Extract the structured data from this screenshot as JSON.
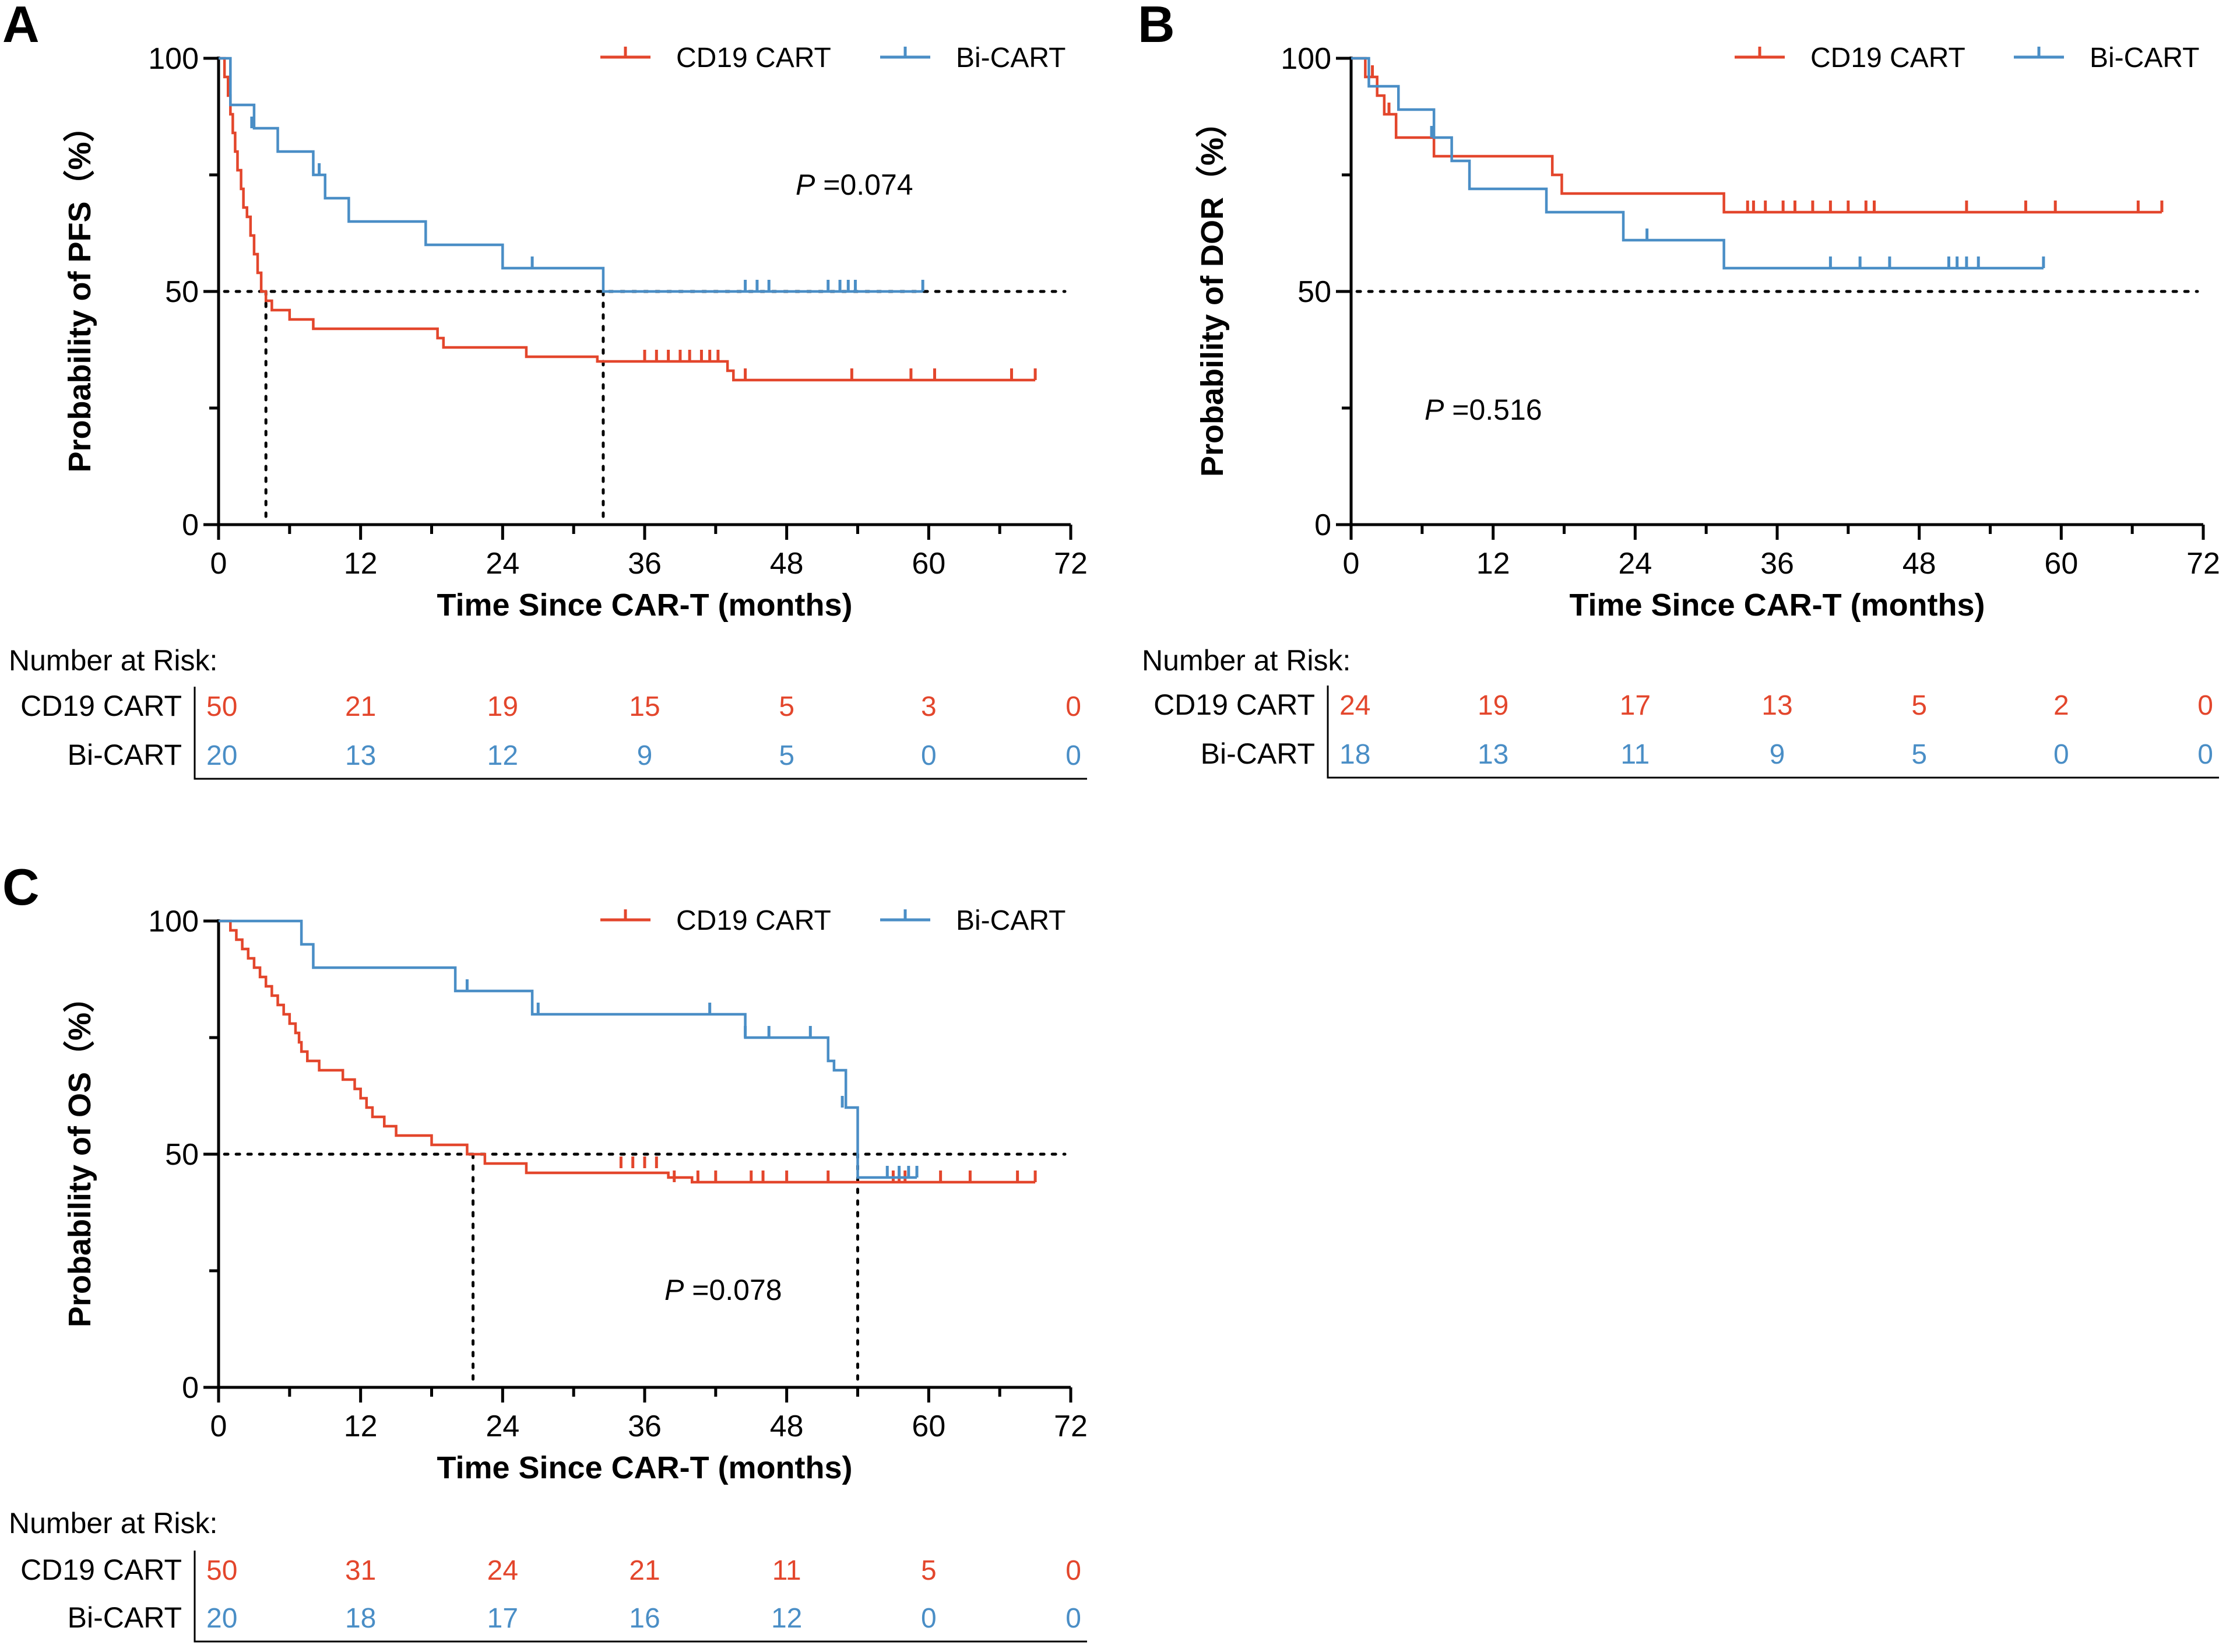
{
  "colors": {
    "cd19": "#e3462c",
    "bi": "#4a8ec6",
    "axis": "#000000"
  },
  "chart_data": [
    {
      "panel": "A",
      "type": "line",
      "subtype": "kaplan-meier",
      "ylabel": "Probability of PFS（%）",
      "xlabel": "Time Since CAR-T (months)",
      "xlim": [
        0,
        72
      ],
      "ylim": [
        0,
        100
      ],
      "xticks": [
        0,
        12,
        24,
        36,
        48,
        60,
        72
      ],
      "yticks": [
        0,
        50,
        100
      ],
      "reference_y": 50,
      "median_lines": [
        4,
        32.5
      ],
      "p_label": "P",
      "p_value": " =0.074",
      "series": [
        {
          "name": "CD19 CART",
          "color_key": "cd19",
          "steps": [
            [
              0,
              100
            ],
            [
              0.5,
              96
            ],
            [
              0.8,
              92
            ],
            [
              1,
              88
            ],
            [
              1.2,
              84
            ],
            [
              1.4,
              80
            ],
            [
              1.6,
              76
            ],
            [
              1.9,
              72
            ],
            [
              2.1,
              68
            ],
            [
              2.4,
              66
            ],
            [
              2.7,
              62
            ],
            [
              3,
              58
            ],
            [
              3.3,
              54
            ],
            [
              3.6,
              50
            ],
            [
              4,
              48
            ],
            [
              4.5,
              46
            ],
            [
              6,
              44
            ],
            [
              8,
              42
            ],
            [
              18.5,
              40
            ],
            [
              19,
              38
            ],
            [
              26,
              36
            ],
            [
              32,
              35
            ],
            [
              43,
              33
            ],
            [
              43.5,
              31
            ]
          ],
          "end_x": 69,
          "censored": [
            [
              36,
              35
            ],
            [
              37,
              35
            ],
            [
              38,
              35
            ],
            [
              39,
              35
            ],
            [
              39.8,
              35
            ],
            [
              40.8,
              35
            ],
            [
              41.5,
              35
            ],
            [
              42.2,
              35
            ],
            [
              44.5,
              31
            ],
            [
              53.5,
              31
            ],
            [
              58.5,
              31
            ],
            [
              60.5,
              31
            ],
            [
              67,
              31
            ],
            [
              69,
              31
            ]
          ]
        },
        {
          "name": "Bi-CART",
          "color_key": "bi",
          "steps": [
            [
              0,
              100
            ],
            [
              1,
              90
            ],
            [
              3,
              85
            ],
            [
              5,
              80
            ],
            [
              8,
              75
            ],
            [
              9,
              70
            ],
            [
              11,
              65
            ],
            [
              17.5,
              60
            ],
            [
              24,
              55
            ],
            [
              32.5,
              50
            ]
          ],
          "end_x": 59.5,
          "censored": [
            [
              2.8,
              85
            ],
            [
              8.5,
              75
            ],
            [
              26.5,
              55
            ],
            [
              44.5,
              50
            ],
            [
              45.5,
              50
            ],
            [
              46.5,
              50
            ],
            [
              51.5,
              50
            ],
            [
              52.5,
              50
            ],
            [
              53.2,
              50
            ],
            [
              53.8,
              50
            ],
            [
              59.5,
              50
            ]
          ]
        }
      ],
      "risk_table": {
        "title": "Number at Risk:",
        "rows": [
          {
            "label": "CD19 CART",
            "color_key": "cd19",
            "values": [
              "50",
              "21",
              "19",
              "15",
              "5",
              "3",
              "0"
            ]
          },
          {
            "label": "Bi-CART",
            "color_key": "bi",
            "values": [
              "20",
              "13",
              "12",
              "9",
              "5",
              "0",
              "0"
            ]
          }
        ]
      }
    },
    {
      "panel": "B",
      "type": "line",
      "subtype": "kaplan-meier",
      "ylabel": "Probability of DOR（%）",
      "xlabel": "Time Since CAR-T (months)",
      "xlim": [
        0,
        72
      ],
      "ylim": [
        0,
        100
      ],
      "xticks": [
        0,
        12,
        24,
        36,
        48,
        60,
        72
      ],
      "yticks": [
        0,
        50,
        100
      ],
      "reference_y": 50,
      "median_lines": [],
      "p_label": "P",
      "p_value": " =0.516",
      "series": [
        {
          "name": "CD19 CART",
          "color_key": "cd19",
          "steps": [
            [
              0,
              100
            ],
            [
              1.2,
              96
            ],
            [
              2.2,
              92
            ],
            [
              2.8,
              88
            ],
            [
              3.8,
              83
            ],
            [
              7,
              79
            ],
            [
              17,
              75
            ],
            [
              17.8,
              71
            ],
            [
              31.5,
              67
            ]
          ],
          "end_x": 68.5,
          "censored": [
            [
              1.8,
              96
            ],
            [
              3.2,
              88
            ],
            [
              33.5,
              67
            ],
            [
              34,
              67
            ],
            [
              35,
              67
            ],
            [
              36.5,
              67
            ],
            [
              37.5,
              67
            ],
            [
              39,
              67
            ],
            [
              40.5,
              67
            ],
            [
              42,
              67
            ],
            [
              43.5,
              67
            ],
            [
              44.2,
              67
            ],
            [
              52,
              67
            ],
            [
              57,
              67
            ],
            [
              59.5,
              67
            ],
            [
              66.5,
              67
            ],
            [
              68.5,
              67
            ]
          ]
        },
        {
          "name": "Bi-CART",
          "color_key": "bi",
          "steps": [
            [
              0,
              100
            ],
            [
              1.5,
              94
            ],
            [
              4,
              89
            ],
            [
              7,
              83
            ],
            [
              8.5,
              78
            ],
            [
              10,
              72
            ],
            [
              16.5,
              67
            ],
            [
              23,
              61
            ],
            [
              31.5,
              55
            ]
          ],
          "end_x": 58.5,
          "censored": [
            [
              6.8,
              83
            ],
            [
              25,
              61
            ],
            [
              40.5,
              55
            ],
            [
              43,
              55
            ],
            [
              45.5,
              55
            ],
            [
              50.5,
              55
            ],
            [
              51.2,
              55
            ],
            [
              52,
              55
            ],
            [
              53,
              55
            ],
            [
              58.5,
              55
            ]
          ]
        }
      ],
      "risk_table": {
        "title": "Number at Risk:",
        "rows": [
          {
            "label": "CD19 CART",
            "color_key": "cd19",
            "values": [
              "24",
              "19",
              "17",
              "13",
              "5",
              "2",
              "0"
            ]
          },
          {
            "label": "Bi-CART",
            "color_key": "bi",
            "values": [
              "18",
              "13",
              "11",
              "9",
              "5",
              "0",
              "0"
            ]
          }
        ]
      }
    },
    {
      "panel": "C",
      "type": "line",
      "subtype": "kaplan-meier",
      "ylabel": "Probability of OS（%）",
      "xlabel": "Time Since CAR-T (months)",
      "xlim": [
        0,
        72
      ],
      "ylim": [
        0,
        100
      ],
      "xticks": [
        0,
        12,
        24,
        36,
        48,
        60,
        72
      ],
      "yticks": [
        0,
        50,
        100
      ],
      "reference_y": 50,
      "median_lines": [
        21.5,
        54
      ],
      "p_label": "P",
      "p_value": " =0.078",
      "series": [
        {
          "name": "CD19 CART",
          "color_key": "cd19",
          "steps": [
            [
              0,
              100
            ],
            [
              1,
              98
            ],
            [
              1.5,
              96
            ],
            [
              2,
              94
            ],
            [
              2.5,
              92
            ],
            [
              3,
              90
            ],
            [
              3.5,
              88
            ],
            [
              4,
              86
            ],
            [
              4.5,
              84
            ],
            [
              5,
              82
            ],
            [
              5.5,
              80
            ],
            [
              6,
              78
            ],
            [
              6.5,
              76
            ],
            [
              6.8,
              74
            ],
            [
              7,
              72
            ],
            [
              7.5,
              70
            ],
            [
              8.5,
              68
            ],
            [
              10.5,
              66
            ],
            [
              11.5,
              64
            ],
            [
              12,
              62
            ],
            [
              12.5,
              60
            ],
            [
              13,
              58
            ],
            [
              14,
              56
            ],
            [
              15,
              54
            ],
            [
              18,
              52
            ],
            [
              21,
              50
            ],
            [
              22.5,
              48
            ],
            [
              26,
              46
            ],
            [
              38,
              45
            ],
            [
              40,
              44
            ]
          ],
          "end_x": 69,
          "censored": [
            [
              34,
              47
            ],
            [
              35,
              47
            ],
            [
              36,
              47
            ],
            [
              37,
              47
            ],
            [
              38.5,
              44
            ],
            [
              40.5,
              44
            ],
            [
              42,
              44
            ],
            [
              45,
              44
            ],
            [
              46,
              44
            ],
            [
              48,
              44
            ],
            [
              51.5,
              44
            ],
            [
              57,
              44
            ],
            [
              57.5,
              44
            ],
            [
              58,
              44
            ],
            [
              61,
              44
            ],
            [
              63.5,
              44
            ],
            [
              67.5,
              44
            ],
            [
              69,
              44
            ]
          ]
        },
        {
          "name": "Bi-CART",
          "color_key": "bi",
          "steps": [
            [
              0,
              100
            ],
            [
              7,
              95
            ],
            [
              8,
              90
            ],
            [
              20,
              85
            ],
            [
              26.5,
              80
            ],
            [
              44.5,
              75
            ],
            [
              51.5,
              70
            ],
            [
              52,
              68
            ],
            [
              53,
              60
            ],
            [
              54,
              45
            ]
          ],
          "end_x": 59,
          "censored": [
            [
              21,
              85
            ],
            [
              27,
              80
            ],
            [
              41.5,
              80
            ],
            [
              44.5,
              75
            ],
            [
              46.5,
              75
            ],
            [
              50,
              75
            ],
            [
              52.7,
              60
            ],
            [
              56.5,
              45
            ],
            [
              57.5,
              45
            ],
            [
              58.3,
              45
            ],
            [
              59,
              45
            ]
          ]
        }
      ],
      "risk_table": {
        "title": "Number at Risk:",
        "rows": [
          {
            "label": "CD19 CART",
            "color_key": "cd19",
            "values": [
              "50",
              "31",
              "24",
              "21",
              "11",
              "5",
              "0"
            ]
          },
          {
            "label": "Bi-CART",
            "color_key": "bi",
            "values": [
              "20",
              "18",
              "17",
              "16",
              "12",
              "0",
              "0"
            ]
          }
        ]
      }
    }
  ]
}
